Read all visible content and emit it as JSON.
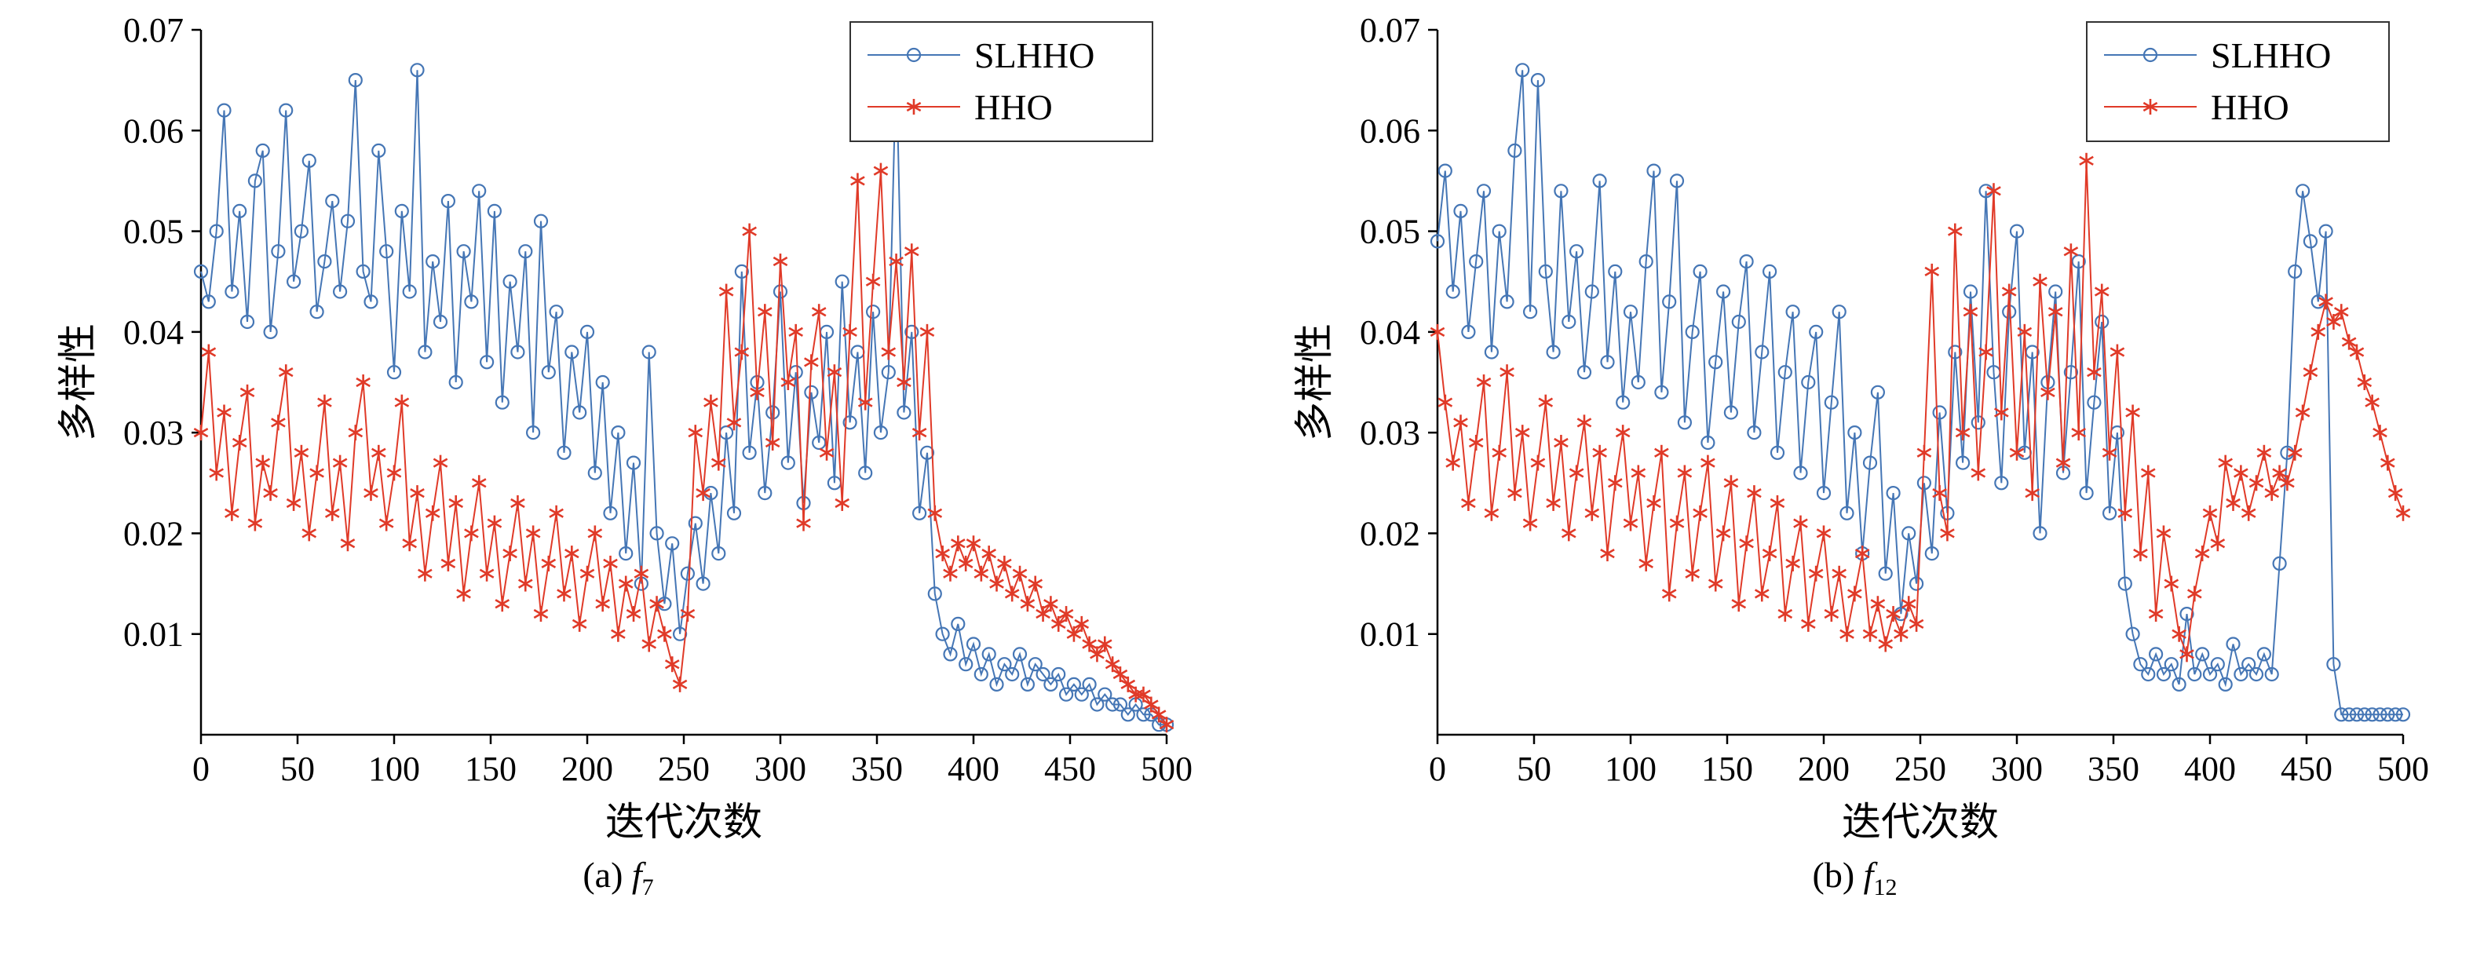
{
  "figure": {
    "background": "#ffffff",
    "axis_color": "#000000",
    "legend_border_color": "#333333"
  },
  "chart_data": [
    {
      "type": "line",
      "id": "a",
      "caption": {
        "prefix": "(a) ",
        "func": "f",
        "sub": "7"
      },
      "xlabel": "迭代次数",
      "ylabel": "多样性",
      "xlim": [
        0,
        500
      ],
      "ylim": [
        0,
        0.07
      ],
      "xticks": [
        0,
        50,
        100,
        150,
        200,
        250,
        300,
        350,
        400,
        450,
        500
      ],
      "yticks": [
        "0.01",
        "0.02",
        "0.03",
        "0.04",
        "0.05",
        "0.06",
        "0.07"
      ],
      "grid": false,
      "legend_position": "top-right",
      "series": [
        {
          "name": "SLHHO",
          "marker": "circle",
          "color": "#4576b5",
          "x_start": 0,
          "x_step": 4,
          "values": [
            0.046,
            0.043,
            0.05,
            0.062,
            0.044,
            0.052,
            0.041,
            0.055,
            0.058,
            0.04,
            0.048,
            0.062,
            0.045,
            0.05,
            0.057,
            0.042,
            0.047,
            0.053,
            0.044,
            0.051,
            0.065,
            0.046,
            0.043,
            0.058,
            0.048,
            0.036,
            0.052,
            0.044,
            0.066,
            0.038,
            0.047,
            0.041,
            0.053,
            0.035,
            0.048,
            0.043,
            0.054,
            0.037,
            0.052,
            0.033,
            0.045,
            0.038,
            0.048,
            0.03,
            0.051,
            0.036,
            0.042,
            0.028,
            0.038,
            0.032,
            0.04,
            0.026,
            0.035,
            0.022,
            0.03,
            0.018,
            0.027,
            0.015,
            0.038,
            0.02,
            0.013,
            0.019,
            0.01,
            0.016,
            0.021,
            0.015,
            0.024,
            0.018,
            0.03,
            0.022,
            0.046,
            0.028,
            0.035,
            0.024,
            0.032,
            0.044,
            0.027,
            0.036,
            0.023,
            0.034,
            0.029,
            0.04,
            0.025,
            0.045,
            0.031,
            0.038,
            0.026,
            0.042,
            0.03,
            0.036,
            0.067,
            0.032,
            0.04,
            0.022,
            0.028,
            0.014,
            0.01,
            0.008,
            0.011,
            0.007,
            0.009,
            0.006,
            0.008,
            0.005,
            0.007,
            0.006,
            0.008,
            0.005,
            0.007,
            0.006,
            0.005,
            0.006,
            0.004,
            0.005,
            0.004,
            0.005,
            0.003,
            0.004,
            0.003,
            0.003,
            0.002,
            0.003,
            0.002,
            0.002,
            0.001,
            0.001
          ]
        },
        {
          "name": "HHO",
          "marker": "asterisk",
          "color": "#e03a28",
          "x_start": 0,
          "x_step": 4,
          "values": [
            0.03,
            0.038,
            0.026,
            0.032,
            0.022,
            0.029,
            0.034,
            0.021,
            0.027,
            0.024,
            0.031,
            0.036,
            0.023,
            0.028,
            0.02,
            0.026,
            0.033,
            0.022,
            0.027,
            0.019,
            0.03,
            0.035,
            0.024,
            0.028,
            0.021,
            0.026,
            0.033,
            0.019,
            0.024,
            0.016,
            0.022,
            0.027,
            0.017,
            0.023,
            0.014,
            0.02,
            0.025,
            0.016,
            0.021,
            0.013,
            0.018,
            0.023,
            0.015,
            0.02,
            0.012,
            0.017,
            0.022,
            0.014,
            0.018,
            0.011,
            0.016,
            0.02,
            0.013,
            0.017,
            0.01,
            0.015,
            0.012,
            0.016,
            0.009,
            0.013,
            0.01,
            0.007,
            0.005,
            0.012,
            0.03,
            0.024,
            0.033,
            0.027,
            0.044,
            0.031,
            0.038,
            0.05,
            0.034,
            0.042,
            0.029,
            0.047,
            0.035,
            0.04,
            0.021,
            0.037,
            0.042,
            0.028,
            0.036,
            0.023,
            0.04,
            0.055,
            0.033,
            0.045,
            0.056,
            0.038,
            0.047,
            0.035,
            0.048,
            0.03,
            0.04,
            0.022,
            0.018,
            0.016,
            0.019,
            0.017,
            0.019,
            0.016,
            0.018,
            0.015,
            0.017,
            0.014,
            0.016,
            0.013,
            0.015,
            0.012,
            0.013,
            0.011,
            0.012,
            0.01,
            0.011,
            0.009,
            0.008,
            0.009,
            0.007,
            0.006,
            0.005,
            0.004,
            0.004,
            0.003,
            0.002,
            0.001
          ]
        }
      ]
    },
    {
      "type": "line",
      "id": "b",
      "caption": {
        "prefix": "(b) ",
        "func": "f",
        "sub": "12"
      },
      "xlabel": "迭代次数",
      "ylabel": "多样性",
      "xlim": [
        0,
        500
      ],
      "ylim": [
        0,
        0.07
      ],
      "xticks": [
        0,
        50,
        100,
        150,
        200,
        250,
        300,
        350,
        400,
        450,
        500
      ],
      "yticks": [
        "0.01",
        "0.02",
        "0.03",
        "0.04",
        "0.05",
        "0.06",
        "0.07"
      ],
      "grid": false,
      "legend_position": "top-right",
      "series": [
        {
          "name": "SLHHO",
          "marker": "circle",
          "color": "#4576b5",
          "x_start": 0,
          "x_step": 4,
          "values": [
            0.049,
            0.056,
            0.044,
            0.052,
            0.04,
            0.047,
            0.054,
            0.038,
            0.05,
            0.043,
            0.058,
            0.066,
            0.042,
            0.065,
            0.046,
            0.038,
            0.054,
            0.041,
            0.048,
            0.036,
            0.044,
            0.055,
            0.037,
            0.046,
            0.033,
            0.042,
            0.035,
            0.047,
            0.056,
            0.034,
            0.043,
            0.055,
            0.031,
            0.04,
            0.046,
            0.029,
            0.037,
            0.044,
            0.032,
            0.041,
            0.047,
            0.03,
            0.038,
            0.046,
            0.028,
            0.036,
            0.042,
            0.026,
            0.035,
            0.04,
            0.024,
            0.033,
            0.042,
            0.022,
            0.03,
            0.018,
            0.027,
            0.034,
            0.016,
            0.024,
            0.012,
            0.02,
            0.015,
            0.025,
            0.018,
            0.032,
            0.022,
            0.038,
            0.027,
            0.044,
            0.031,
            0.054,
            0.036,
            0.025,
            0.042,
            0.05,
            0.028,
            0.038,
            0.02,
            0.035,
            0.044,
            0.026,
            0.036,
            0.047,
            0.024,
            0.033,
            0.041,
            0.022,
            0.03,
            0.015,
            0.01,
            0.007,
            0.006,
            0.008,
            0.006,
            0.007,
            0.005,
            0.012,
            0.006,
            0.008,
            0.006,
            0.007,
            0.005,
            0.009,
            0.006,
            0.007,
            0.006,
            0.008,
            0.006,
            0.017,
            0.028,
            0.046,
            0.054,
            0.049,
            0.043,
            0.05,
            0.007,
            0.002,
            0.002,
            0.002,
            0.002,
            0.002,
            0.002,
            0.002,
            0.002,
            0.002
          ]
        },
        {
          "name": "HHO",
          "marker": "asterisk",
          "color": "#e03a28",
          "x_start": 0,
          "x_step": 4,
          "values": [
            0.04,
            0.033,
            0.027,
            0.031,
            0.023,
            0.029,
            0.035,
            0.022,
            0.028,
            0.036,
            0.024,
            0.03,
            0.021,
            0.027,
            0.033,
            0.023,
            0.029,
            0.02,
            0.026,
            0.031,
            0.022,
            0.028,
            0.018,
            0.025,
            0.03,
            0.021,
            0.026,
            0.017,
            0.023,
            0.028,
            0.014,
            0.021,
            0.026,
            0.016,
            0.022,
            0.027,
            0.015,
            0.02,
            0.025,
            0.013,
            0.019,
            0.024,
            0.014,
            0.018,
            0.023,
            0.012,
            0.017,
            0.021,
            0.011,
            0.016,
            0.02,
            0.012,
            0.016,
            0.01,
            0.014,
            0.018,
            0.01,
            0.013,
            0.009,
            0.012,
            0.01,
            0.013,
            0.011,
            0.028,
            0.046,
            0.024,
            0.02,
            0.05,
            0.03,
            0.042,
            0.026,
            0.038,
            0.054,
            0.032,
            0.044,
            0.028,
            0.04,
            0.024,
            0.045,
            0.034,
            0.042,
            0.027,
            0.048,
            0.03,
            0.057,
            0.036,
            0.044,
            0.028,
            0.038,
            0.022,
            0.032,
            0.018,
            0.026,
            0.012,
            0.02,
            0.015,
            0.01,
            0.008,
            0.014,
            0.018,
            0.022,
            0.019,
            0.027,
            0.023,
            0.026,
            0.022,
            0.025,
            0.028,
            0.024,
            0.026,
            0.025,
            0.028,
            0.032,
            0.036,
            0.04,
            0.043,
            0.041,
            0.042,
            0.039,
            0.038,
            0.035,
            0.033,
            0.03,
            0.027,
            0.024,
            0.022
          ]
        }
      ]
    }
  ]
}
